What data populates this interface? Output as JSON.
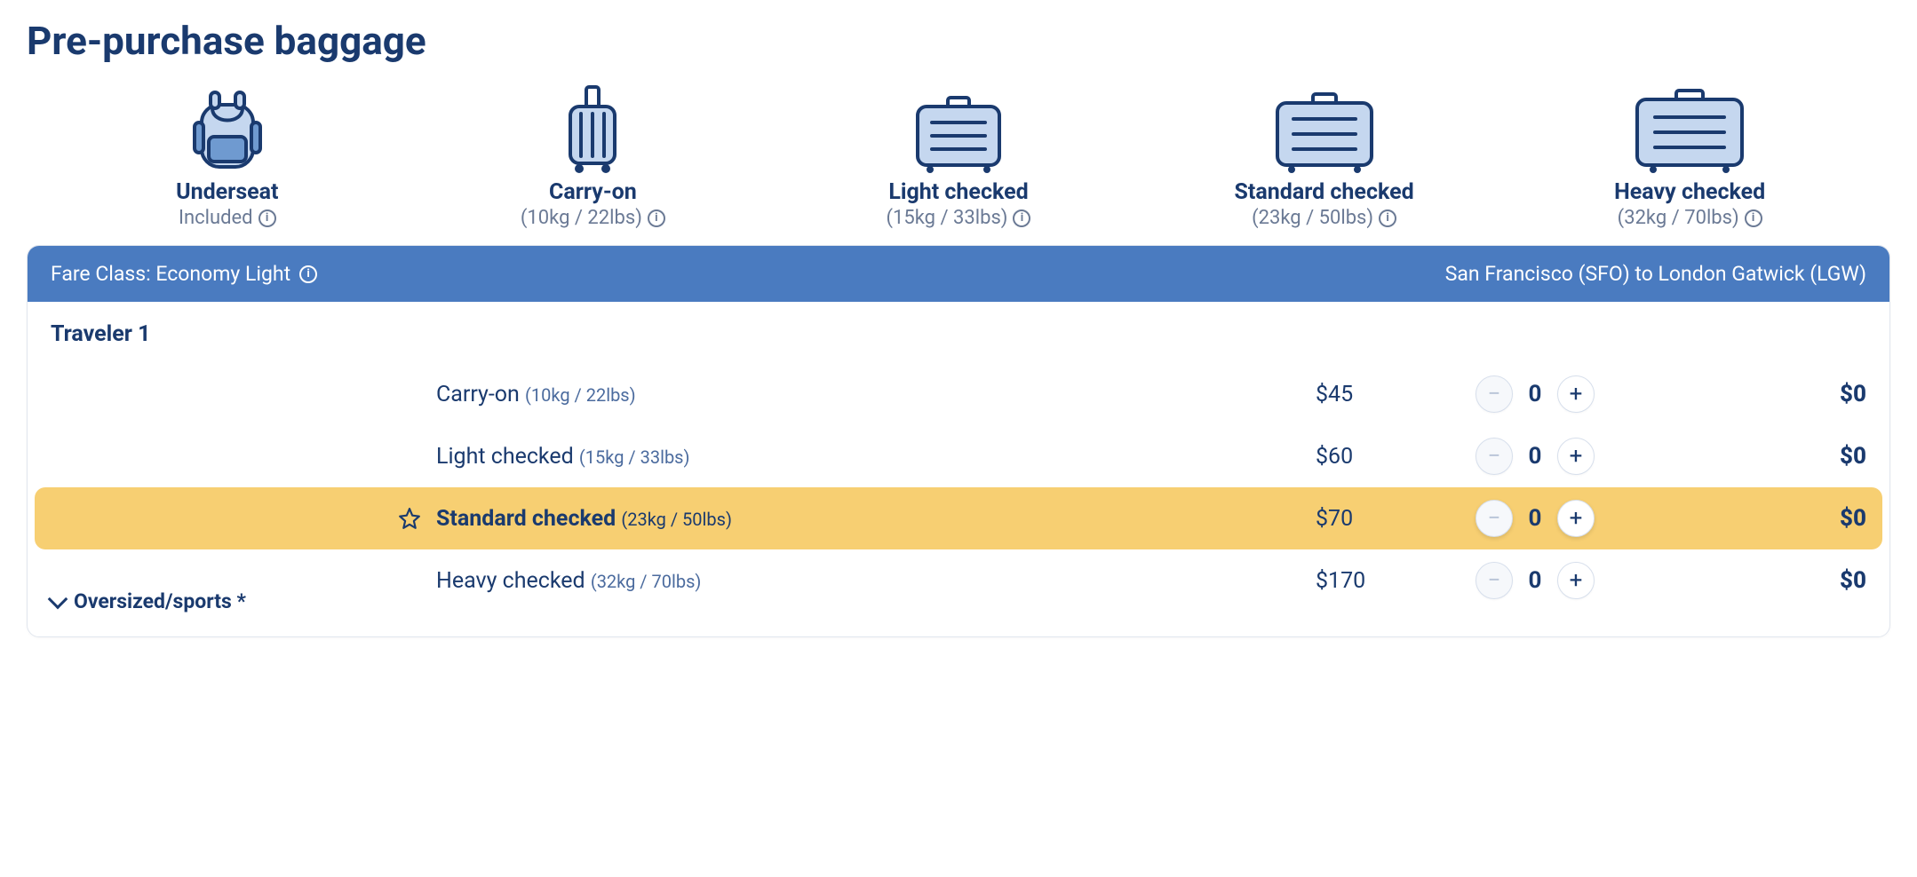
{
  "colors": {
    "primary_text": "#1a3a6e",
    "muted_text": "#6b7a95",
    "header_bg": "#4a7bc0",
    "highlight_bg": "#f7cf72",
    "icon_fill": "#c5d7ef",
    "icon_stroke": "#1a3a6e",
    "icon_accent": "#6f9ad0",
    "border": "#e1e6ee",
    "disabled": "#b9c5d8"
  },
  "title": "Pre-purchase baggage",
  "bag_types": [
    {
      "id": "underseat",
      "title": "Underseat",
      "sub": "Included"
    },
    {
      "id": "carryon",
      "title": "Carry-on",
      "sub": "(10kg / 22lbs)"
    },
    {
      "id": "light",
      "title": "Light checked",
      "sub": "(15kg / 33lbs)"
    },
    {
      "id": "standard",
      "title": "Standard checked",
      "sub": "(23kg / 50lbs)"
    },
    {
      "id": "heavy",
      "title": "Heavy checked",
      "sub": "(32kg / 70lbs)"
    }
  ],
  "header": {
    "fare_label": "Fare Class: Economy Light",
    "route": "San Francisco (SFO) to London Gatwick (LGW)"
  },
  "traveler_label": "Traveler 1",
  "rows": [
    {
      "name": "Carry-on",
      "weight": "(10kg / 22lbs)",
      "price": "$45",
      "qty": "0",
      "total": "$0",
      "highlighted": false,
      "starred": false
    },
    {
      "name": "Light checked",
      "weight": "(15kg / 33lbs)",
      "price": "$60",
      "qty": "0",
      "total": "$0",
      "highlighted": false,
      "starred": false
    },
    {
      "name": "Standard checked",
      "weight": "(23kg / 50lbs)",
      "price": "$70",
      "qty": "0",
      "total": "$0",
      "highlighted": true,
      "starred": true
    },
    {
      "name": "Heavy checked",
      "weight": "(32kg / 70lbs)",
      "price": "$170",
      "qty": "0",
      "total": "$0",
      "highlighted": false,
      "starred": false
    }
  ],
  "oversized_label": "Oversized/sports *",
  "glyphs": {
    "minus": "−",
    "plus": "+",
    "info": "i"
  }
}
